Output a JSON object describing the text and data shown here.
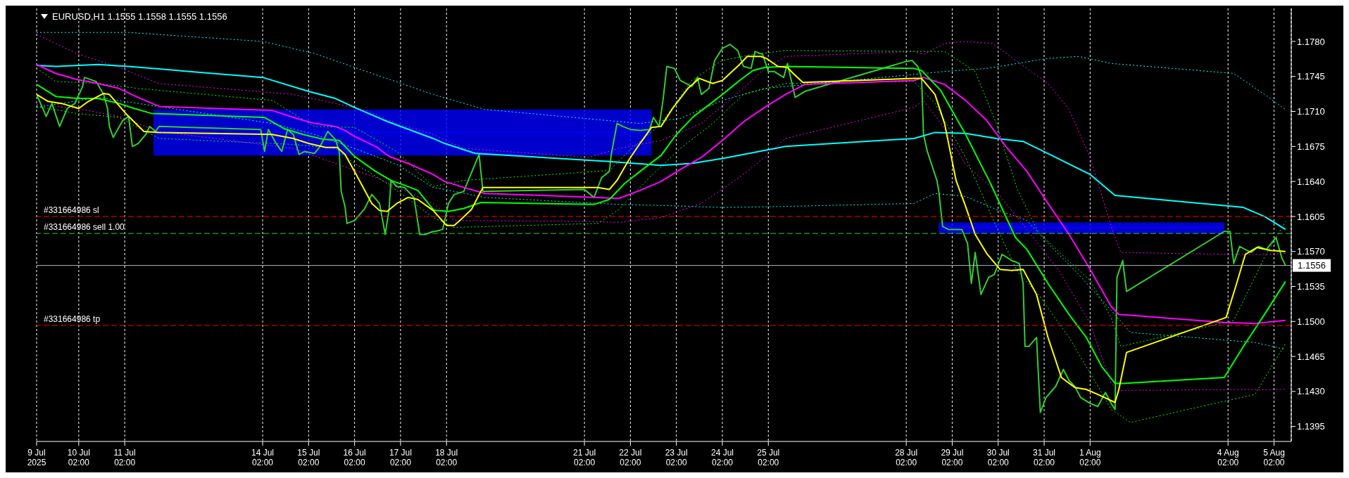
{
  "chart_data": {
    "type": "line",
    "title": "EURUSD,H1 1.1555 1.1558 1.1555 1.1556",
    "xlim": [
      "2025-07-09T04:00",
      "2025-08-05T11:00"
    ],
    "ylim": [
      1.138,
      1.1813
    ],
    "xticks": [
      {
        "value": "2025-07-09T04:00",
        "label": "9 Jul 2025"
      },
      {
        "value": "2025-07-10T02:00",
        "label": "10 Jul 02:00"
      },
      {
        "value": "2025-07-11T02:00",
        "label": "11 Jul 02:00"
      },
      {
        "value": "2025-07-14T02:00",
        "label": "14 Jul 02:00"
      },
      {
        "value": "2025-07-15T02:00",
        "label": "15 Jul 02:00"
      },
      {
        "value": "2025-07-16T02:00",
        "label": "16 Jul 02:00"
      },
      {
        "value": "2025-07-17T02:00",
        "label": "17 Jul 02:00"
      },
      {
        "value": "2025-07-18T02:00",
        "label": "18 Jul 02:00"
      },
      {
        "value": "2025-07-21T02:00",
        "label": "21 Jul 02:00"
      },
      {
        "value": "2025-07-22T02:00",
        "label": "22 Jul 02:00"
      },
      {
        "value": "2025-07-23T02:00",
        "label": "23 Jul 02:00"
      },
      {
        "value": "2025-07-24T02:00",
        "label": "24 Jul 02:00"
      },
      {
        "value": "2025-07-25T02:00",
        "label": "25 Jul 02:00"
      },
      {
        "value": "2025-07-28T02:00",
        "label": "28 Jul 02:00"
      },
      {
        "value": "2025-07-29T02:00",
        "label": "29 Jul 02:00"
      },
      {
        "value": "2025-07-30T02:00",
        "label": "30 Jul 02:00"
      },
      {
        "value": "2025-07-31T02:00",
        "label": "31 Jul 02:00"
      },
      {
        "value": "2025-08-01T02:00",
        "label": "1 Aug 02:00"
      },
      {
        "value": "2025-08-04T02:00",
        "label": "4 Aug 02:00"
      },
      {
        "value": "2025-08-05T02:00",
        "label": "5 Aug 02:00"
      }
    ],
    "yticks": [
      1.1395,
      {
        "value": 1.143,
        "label": "1.1430"
      },
      1.1465,
      {
        "value": 1.15,
        "label": "1.1500"
      },
      1.1535,
      {
        "value": 1.157,
        "label": "1.1570"
      },
      1.1605,
      {
        "value": 1.164,
        "label": "1.1640"
      },
      1.1675,
      {
        "value": 1.171,
        "label": "1.1710"
      },
      1.1745,
      {
        "value": 1.178,
        "label": "1.1780"
      }
    ],
    "grid": "x",
    "series": [
      {
        "color": "#0000ff",
        "x": [
          "2025-07-11T17:00",
          "2025-07-22T13:00"
        ],
        "values": [
          1.1689,
          1.1689
        ],
        "lower": [
          1.1666,
          1.1666
        ],
        "upper": [
          1.1712,
          1.1712
        ]
      },
      {
        "color": "#0000ff",
        "x": [
          "2025-07-28T19:00",
          "2025-08-04T00:00"
        ],
        "values": [
          1.1594,
          1.1594
        ],
        "lower": [
          1.1588,
          1.1588
        ],
        "upper": [
          1.1599,
          1.1599
        ]
      },
      {
        "color": "#00ffff",
        "line_style": "dotted",
        "x": [
          "2025-07-09T04:00",
          "2025-07-11T04:00",
          "2025-07-14T02:00",
          "2025-07-15T05:00",
          "2025-07-16T02:00",
          "2025-07-17T19:00",
          "2025-07-18T22:00",
          "2025-07-22T07:00",
          "2025-07-23T04:00",
          "2025-07-24T02:00",
          "2025-07-25T00:00",
          "2025-07-28T06:00",
          "2025-07-28T22:00",
          "2025-07-29T20:00",
          "2025-07-31T04:00",
          "2025-07-31T20:00",
          "2025-08-01T13:00",
          "2025-08-04T05:00",
          "2025-08-04T21:00",
          "2025-08-05T08:00"
        ],
        "values": [
          1.1789,
          1.1789,
          1.178,
          1.1768,
          1.1754,
          1.1727,
          1.1712,
          1.1698,
          1.1703,
          1.1721,
          1.1733,
          1.1747,
          1.175,
          1.1753,
          1.1763,
          1.1765,
          1.1758,
          1.1748,
          1.1727,
          1.1712
        ]
      },
      {
        "color": "#00ffff",
        "line_style": "dotted",
        "x": [
          "2025-07-09T04:00",
          "2025-07-10T12:00",
          "2025-07-11T09:00",
          "2025-07-14T07:00",
          "2025-07-15T05:00",
          "2025-07-16T02:00",
          "2025-07-17T00:00",
          "2025-07-17T19:00",
          "2025-07-18T01:00",
          "2025-07-18T22:00",
          "2025-07-21T20:00",
          "2025-07-22T18:00",
          "2025-07-24T02:00",
          "2025-07-25T11:00",
          "2025-07-28T06:00",
          "2025-07-28T17:00",
          "2025-07-29T09:00",
          "2025-07-30T01:00",
          "2025-07-30T17:00",
          "2025-07-31T04:00",
          "2025-07-31T20:00",
          "2025-08-01T13:00",
          "2025-08-01T23:00",
          "2025-08-04T16:00",
          "2025-08-05T08:00"
        ],
        "values": [
          1.1714,
          1.1724,
          1.1718,
          1.1698,
          1.1687,
          1.1673,
          1.1657,
          1.1634,
          1.1632,
          1.1624,
          1.1617,
          1.1616,
          1.1614,
          1.1615,
          1.1618,
          1.1628,
          1.1625,
          1.1612,
          1.1601,
          1.1578,
          1.1547,
          1.1511,
          1.1489,
          1.1479,
          1.1472
        ]
      },
      {
        "color": "#ff00ff",
        "line_style": "dotted",
        "x": [
          "2025-07-09T04:00",
          "2025-07-10T01:00",
          "2025-07-10T23:00",
          "2025-07-11T20:00",
          "2025-07-14T18:00",
          "2025-07-15T16:00",
          "2025-07-16T08:00",
          "2025-07-17T00:00",
          "2025-07-17T19:00",
          "2025-07-18T11:00",
          "2025-07-21T04:00",
          "2025-07-21T20:00",
          "2025-07-22T18:00",
          "2025-07-23T15:00",
          "2025-07-24T13:00",
          "2025-07-25T00:00",
          "2025-07-25T11:00",
          "2025-07-28T06:00",
          "2025-07-28T11:00",
          "2025-07-28T22:00",
          "2025-07-29T09:00",
          "2025-07-29T23:00",
          "2025-07-30T17:00",
          "2025-07-31T04:00",
          "2025-07-31T15:00",
          "2025-08-01T02:00",
          "2025-08-01T13:00",
          "2025-08-01T18:00",
          "2025-08-04T05:00",
          "2025-08-04T21:00",
          "2025-08-05T08:00"
        ],
        "values": [
          1.1787,
          1.1768,
          1.1754,
          1.1738,
          1.1727,
          1.1718,
          1.1711,
          1.1698,
          1.1687,
          1.1673,
          1.1664,
          1.1673,
          1.1681,
          1.1698,
          1.1733,
          1.1753,
          1.1765,
          1.177,
          1.1767,
          1.1778,
          1.178,
          1.1778,
          1.1753,
          1.1738,
          1.1712,
          1.1664,
          1.1595,
          1.1569,
          1.1567,
          1.1567,
          1.1568
        ]
      },
      {
        "color": "#ff00ff",
        "line_style": "dotted",
        "x": [
          "2025-07-09T04:00",
          "2025-07-10T01:00",
          "2025-07-10T23:00",
          "2025-07-11T20:00",
          "2025-07-14T18:00",
          "2025-07-15T16:00",
          "2025-07-16T13:00",
          "2025-07-17T19:00",
          "2025-07-18T06:00",
          "2025-07-21T04:00",
          "2025-07-21T20:00",
          "2025-07-22T18:00",
          "2025-07-23T15:00",
          "2025-07-24T13:00",
          "2025-07-25T00:00",
          "2025-07-25T11:00",
          "2025-07-28T06:00",
          "2025-07-28T11:00",
          "2025-07-28T22:00",
          "2025-07-29T09:00",
          "2025-07-30T01:00",
          "2025-07-30T17:00",
          "2025-07-31T10:00",
          "2025-08-01T02:00",
          "2025-08-01T13:00",
          "2025-08-01T18:00",
          "2025-08-04T10:00",
          "2025-08-05T08:00"
        ],
        "values": [
          1.1717,
          1.1713,
          1.1705,
          1.169,
          1.1673,
          1.1658,
          1.1644,
          1.1618,
          1.1601,
          1.16,
          1.1599,
          1.1604,
          1.1618,
          1.1647,
          1.1664,
          1.1683,
          1.1714,
          1.1721,
          1.1693,
          1.1657,
          1.163,
          1.1592,
          1.155,
          1.1498,
          1.1438,
          1.1431,
          1.1432,
          1.1432
        ]
      },
      {
        "color": "#00ff00",
        "line_style": "dotted",
        "x": [
          "2025-07-09T04:00",
          "2025-07-09T14:00",
          "2025-07-10T12:00",
          "2025-07-11T09:00",
          "2025-07-14T07:00",
          "2025-07-15T05:00",
          "2025-07-16T02:00",
          "2025-07-17T00:00",
          "2025-07-17T19:00",
          "2025-07-18T11:00",
          "2025-07-21T15:00",
          "2025-07-22T01:00",
          "2025-07-22T18:00",
          "2025-07-23T10:00",
          "2025-07-24T02:00",
          "2025-07-24T18:00",
          "2025-07-25T11:00",
          "2025-07-28T06:00",
          "2025-07-28T22:00",
          "2025-07-29T14:00",
          "2025-07-30T01:00",
          "2025-07-30T12:00",
          "2025-07-30T23:00",
          "2025-07-31T10:00",
          "2025-08-01T02:00",
          "2025-08-01T13:00",
          "2025-08-01T18:00",
          "2025-08-04T05:00",
          "2025-08-04T21:00",
          "2025-08-05T08:00"
        ],
        "values": [
          1.1753,
          1.174,
          1.1738,
          1.1733,
          1.1721,
          1.1695,
          1.1694,
          1.167,
          1.1635,
          1.1641,
          1.1651,
          1.167,
          1.1698,
          1.1741,
          1.1761,
          1.1767,
          1.1771,
          1.177,
          1.177,
          1.175,
          1.1698,
          1.1632,
          1.1589,
          1.1569,
          1.1541,
          1.1504,
          1.1475,
          1.1501,
          1.1564,
          1.16
        ]
      },
      {
        "color": "#00ff00",
        "line_style": "dotted",
        "x": [
          "2025-07-09T04:00",
          "2025-07-10T01:00",
          "2025-07-10T23:00",
          "2025-07-11T20:00",
          "2025-07-14T18:00",
          "2025-07-15T16:00",
          "2025-07-16T02:00",
          "2025-07-16T19:00",
          "2025-07-17T19:00",
          "2025-07-18T06:00",
          "2025-07-21T09:00",
          "2025-07-21T20:00",
          "2025-07-22T12:00",
          "2025-07-23T04:00",
          "2025-07-23T21:00",
          "2025-07-24T13:00",
          "2025-07-25T11:00",
          "2025-07-28T06:00",
          "2025-07-28T17:00",
          "2025-07-29T09:00",
          "2025-07-30T01:00",
          "2025-07-30T12:00",
          "2025-07-30T23:00",
          "2025-07-31T15:00",
          "2025-08-01T07:00",
          "2025-08-01T13:00",
          "2025-08-01T23:00",
          "2025-08-04T16:00",
          "2025-08-05T08:00"
        ],
        "values": [
          1.1715,
          1.1708,
          1.1704,
          1.1683,
          1.1677,
          1.1673,
          1.1658,
          1.1638,
          1.1604,
          1.1594,
          1.1598,
          1.1612,
          1.1644,
          1.1673,
          1.1698,
          1.1727,
          1.1738,
          1.174,
          1.1718,
          1.1664,
          1.1595,
          1.155,
          1.1527,
          1.1484,
          1.1432,
          1.1412,
          1.1399,
          1.1427,
          1.1478
        ]
      },
      {
        "color": "#32cd32",
        "x": [
          "2025-07-09T04:00",
          "2025-07-09T07:00",
          "2025-07-09T09:00",
          "2025-07-09T12:00",
          "2025-07-09T16:00",
          "2025-07-09T20:00",
          "2025-07-10T00:00",
          "2025-07-10T04:00",
          "2025-07-10T05:00",
          "2025-07-10T11:00",
          "2025-07-10T15:00",
          "2025-07-10T17:00",
          "2025-07-10T18:00",
          "2025-07-10T20:00",
          "2025-07-11T01:00",
          "2025-07-11T04:00",
          "2025-07-11T06:00",
          "2025-07-11T09:00",
          "2025-07-11T13:00",
          "2025-07-11T15:00",
          "2025-07-11T18:00",
          "2025-07-11T20:00",
          "2025-07-14T01:00",
          "2025-07-14T03:00",
          "2025-07-14T05:00",
          "2025-07-14T09:00",
          "2025-07-14T12:00",
          "2025-07-14T15:00",
          "2025-07-14T18:00",
          "2025-07-14T21:00",
          "2025-07-15T00:00",
          "2025-07-15T05:00",
          "2025-07-15T08:00",
          "2025-07-15T12:00",
          "2025-07-15T16:00",
          "2025-07-15T18:00",
          "2025-07-15T19:00",
          "2025-07-15T21:00",
          "2025-07-15T22:00",
          "2025-07-16T02:00",
          "2025-07-16T07:00",
          "2025-07-16T11:00",
          "2025-07-16T15:00",
          "2025-07-16T18:00",
          "2025-07-16T20:00",
          "2025-07-16T21:00",
          "2025-07-17T00:00",
          "2025-07-17T04:00",
          "2025-07-17T09:00",
          "2025-07-17T12:00",
          "2025-07-17T15:00",
          "2025-07-17T19:00",
          "2025-07-17T20:00",
          "2025-07-18T00:00",
          "2025-07-18T03:00",
          "2025-07-18T06:00",
          "2025-07-18T11:00",
          "2025-07-18T17:00",
          "2025-07-18T19:00",
          "2025-07-18T21:00",
          "2025-07-21T02:00",
          "2025-07-21T07:00",
          "2025-07-21T11:00",
          "2025-07-21T15:00",
          "2025-07-21T16:00",
          "2025-07-21T19:00",
          "2025-07-21T22:00",
          "2025-07-22T02:00",
          "2025-07-22T07:00",
          "2025-07-22T12:00",
          "2025-07-22T14:00",
          "2025-07-22T17:00",
          "2025-07-22T19:00",
          "2025-07-22T21:00",
          "2025-07-23T01:00",
          "2025-07-23T04:00",
          "2025-07-23T10:00",
          "2025-07-23T13:00",
          "2025-07-23T15:00",
          "2025-07-23T19:00",
          "2025-07-23T22:00",
          "2025-07-24T02:00",
          "2025-07-24T06:00",
          "2025-07-24T10:00",
          "2025-07-24T13:00",
          "2025-07-24T17:00",
          "2025-07-24T19:00",
          "2025-07-24T23:00",
          "2025-07-25T02:00",
          "2025-07-25T05:00",
          "2025-07-25T10:00",
          "2025-07-25T12:00",
          "2025-07-25T16:00",
          "2025-07-25T21:00",
          "2025-07-28T02:00",
          "2025-07-28T05:00",
          "2025-07-28T08:00",
          "2025-07-28T10:00",
          "2025-07-28T11:00",
          "2025-07-28T13:00",
          "2025-07-28T18:00",
          "2025-07-28T19:00",
          "2025-07-28T21:00",
          "2025-07-29T00:00",
          "2025-07-29T07:00",
          "2025-07-29T10:00",
          "2025-07-29T12:00",
          "2025-07-29T14:00",
          "2025-07-29T17:00",
          "2025-07-29T21:00",
          "2025-07-30T00:00",
          "2025-07-30T04:00",
          "2025-07-30T09:00",
          "2025-07-30T13:00",
          "2025-07-30T15:00",
          "2025-07-30T16:00",
          "2025-07-30T18:00",
          "2025-07-30T22:00",
          "2025-07-31T00:00",
          "2025-07-31T03:00",
          "2025-07-31T08:00",
          "2025-07-31T12:00",
          "2025-07-31T15:00",
          "2025-07-31T18:00",
          "2025-07-31T21:00",
          "2025-08-01T02:00",
          "2025-08-01T06:00",
          "2025-08-01T10:00",
          "2025-08-01T13:00",
          "2025-08-01T15:00",
          "2025-08-01T16:00",
          "2025-08-01T19:00",
          "2025-08-01T21:00",
          "2025-08-04T00:00",
          "2025-08-04T03:00",
          "2025-08-04T05:00",
          "2025-08-04T08:00",
          "2025-08-04T14:00",
          "2025-08-04T18:00",
          "2025-08-04T22:00",
          "2025-08-05T03:00",
          "2025-08-05T06:00",
          "2025-08-05T08:00"
        ],
        "values": [
          1.1727,
          1.1714,
          1.1705,
          1.1718,
          1.1695,
          1.1713,
          1.1718,
          1.1735,
          1.1744,
          1.174,
          1.1727,
          1.1713,
          1.1695,
          1.1684,
          1.1701,
          1.1705,
          1.1675,
          1.1678,
          1.1687,
          1.1695,
          1.169,
          1.1695,
          1.1692,
          1.167,
          1.1692,
          1.1678,
          1.167,
          1.1692,
          1.1687,
          1.1667,
          1.167,
          1.1668,
          1.1675,
          1.169,
          1.1682,
          1.167,
          1.163,
          1.1615,
          1.1598,
          1.1601,
          1.1612,
          1.1627,
          1.1618,
          1.1587,
          1.1612,
          1.1641,
          1.1635,
          1.1634,
          1.1624,
          1.1587,
          1.1587,
          1.159,
          1.159,
          1.1592,
          1.1618,
          1.1627,
          1.163,
          1.1658,
          1.1667,
          1.163,
          1.1632,
          1.1624,
          1.1644,
          1.165,
          1.1667,
          1.1698,
          1.1695,
          1.1692,
          1.1691,
          1.1692,
          1.1704,
          1.1695,
          1.1721,
          1.1755,
          1.1753,
          1.1741,
          1.1735,
          1.1744,
          1.1727,
          1.1733,
          1.1761,
          1.1773,
          1.1777,
          1.1771,
          1.1755,
          1.1753,
          1.177,
          1.1767,
          1.175,
          1.175,
          1.1744,
          1.1758,
          1.1724,
          1.173,
          1.176,
          1.1761,
          1.1755,
          1.1744,
          1.1687,
          1.167,
          1.1641,
          1.163,
          1.1595,
          1.1592,
          1.1592,
          1.1578,
          1.1538,
          1.1569,
          1.1527,
          1.1544,
          1.1547,
          1.1567,
          1.1561,
          1.1558,
          1.1538,
          1.1475,
          1.1475,
          1.1484,
          1.1409,
          1.1424,
          1.1435,
          1.1452,
          1.1441,
          1.1435,
          1.1424,
          1.1418,
          1.1415,
          1.1429,
          1.1418,
          1.1412,
          1.1544,
          1.1561,
          1.153,
          1.159,
          1.159,
          1.1558,
          1.1575,
          1.1569,
          1.1575,
          1.1572,
          1.1584,
          1.1564,
          1.1556
        ]
      },
      {
        "color": "#00ffff",
        "line_style": "solid",
        "x": [
          "2025-07-09T04:00",
          "2025-07-09T14:00",
          "2025-07-10T12:00",
          "2025-07-11T04:00",
          "2025-07-14T02:00",
          "2025-07-15T02:00",
          "2025-07-15T16:00",
          "2025-07-16T02:00",
          "2025-07-16T19:00",
          "2025-07-17T19:00",
          "2025-07-18T01:00",
          "2025-07-18T17:00",
          "2025-07-21T15:00",
          "2025-07-22T18:00",
          "2025-07-23T10:00",
          "2025-07-24T02:00",
          "2025-07-25T00:00",
          "2025-07-25T11:00",
          "2025-07-28T06:00",
          "2025-07-28T17:00",
          "2025-07-29T09:00",
          "2025-07-30T01:00",
          "2025-07-30T15:00",
          "2025-07-31T04:00",
          "2025-08-01T02:00",
          "2025-08-01T15:00",
          "2025-08-04T10:00",
          "2025-08-04T21:00",
          "2025-08-05T08:00"
        ],
        "values": [
          1.1756,
          1.1755,
          1.1757,
          1.1755,
          1.1744,
          1.173,
          1.1723,
          1.1714,
          1.17,
          1.1683,
          1.1678,
          1.1668,
          1.166,
          1.1656,
          1.1658,
          1.1663,
          1.1671,
          1.1675,
          1.1683,
          1.1689,
          1.1688,
          1.1683,
          1.168,
          1.1668,
          1.1647,
          1.1626,
          1.1614,
          1.1605,
          1.1592
        ]
      },
      {
        "color": "#ff00ff",
        "line_style": "solid",
        "x": [
          "2025-07-09T04:00",
          "2025-07-09T14:00",
          "2025-07-10T01:00",
          "2025-07-10T12:00",
          "2025-07-10T23:00",
          "2025-07-11T09:00",
          "2025-07-11T20:00",
          "2025-07-14T07:00",
          "2025-07-14T18:00",
          "2025-07-15T05:00",
          "2025-07-15T16:00",
          "2025-07-15T21:00",
          "2025-07-16T02:00",
          "2025-07-16T13:00",
          "2025-07-16T20:00",
          "2025-07-17T06:00",
          "2025-07-17T19:00",
          "2025-07-18T01:00",
          "2025-07-18T11:00",
          "2025-07-18T22:00",
          "2025-07-21T09:00",
          "2025-07-21T20:00",
          "2025-07-22T07:00",
          "2025-07-22T18:00",
          "2025-07-23T04:00",
          "2025-07-23T15:00",
          "2025-07-24T02:00",
          "2025-07-24T14:00",
          "2025-07-25T00:00",
          "2025-07-25T11:00",
          "2025-07-25T21:00",
          "2025-07-28T06:00",
          "2025-07-28T11:00",
          "2025-07-28T22:00",
          "2025-07-29T09:00",
          "2025-07-29T20:00",
          "2025-07-30T06:00",
          "2025-07-30T17:00",
          "2025-07-31T04:00",
          "2025-07-31T15:00",
          "2025-08-01T02:00",
          "2025-08-01T13:00",
          "2025-08-01T17:00",
          "2025-08-04T00:00",
          "2025-08-04T16:00",
          "2025-08-05T08:00"
        ],
        "values": [
          1.1757,
          1.1748,
          1.1742,
          1.1738,
          1.1733,
          1.1724,
          1.1715,
          1.1711,
          1.1704,
          1.1698,
          1.1695,
          1.1691,
          1.1685,
          1.1675,
          1.1665,
          1.1658,
          1.1647,
          1.164,
          1.1634,
          1.1628,
          1.1624,
          1.1623,
          1.1631,
          1.164,
          1.1652,
          1.1664,
          1.1681,
          1.1701,
          1.1714,
          1.1727,
          1.1737,
          1.1741,
          1.1744,
          1.1737,
          1.1721,
          1.1701,
          1.1675,
          1.165,
          1.1618,
          1.1587,
          1.1552,
          1.1515,
          1.1507,
          1.1499,
          1.1498,
          1.1501
        ]
      },
      {
        "color": "#00ff00",
        "line_style": "solid",
        "x": [
          "2025-07-09T04:00",
          "2025-07-09T14:00",
          "2025-07-10T01:00",
          "2025-07-10T12:00",
          "2025-07-10T23:00",
          "2025-07-11T07:00",
          "2025-07-11T16:00",
          "2025-07-14T03:00",
          "2025-07-14T13:00",
          "2025-07-14T23:00",
          "2025-07-15T10:00",
          "2025-07-15T18:00",
          "2025-07-16T02:00",
          "2025-07-16T13:00",
          "2025-07-16T21:00",
          "2025-07-17T03:00",
          "2025-07-17T11:00",
          "2025-07-17T19:00",
          "2025-07-17T20:00",
          "2025-07-18T03:00",
          "2025-07-18T11:00",
          "2025-07-18T20:00",
          "2025-07-21T07:00",
          "2025-07-21T15:00",
          "2025-07-21T23:00",
          "2025-07-22T07:00",
          "2025-07-22T18:00",
          "2025-07-23T02:00",
          "2025-07-23T11:00",
          "2025-07-23T20:00",
          "2025-07-24T02:00",
          "2025-07-24T11:00",
          "2025-07-24T18:00",
          "2025-07-25T00:00",
          "2025-07-25T11:00",
          "2025-07-28T06:00",
          "2025-07-28T10:00",
          "2025-07-28T20:00",
          "2025-07-29T09:00",
          "2025-07-29T22:00",
          "2025-07-30T11:00",
          "2025-07-30T17:00",
          "2025-07-31T04:00",
          "2025-07-31T15:00",
          "2025-08-01T00:00",
          "2025-08-01T08:00",
          "2025-08-01T15:00",
          "2025-08-01T19:00",
          "2025-08-04T00:00",
          "2025-08-04T10:00",
          "2025-08-04T21:00",
          "2025-08-05T08:00"
        ],
        "values": [
          1.1737,
          1.1725,
          1.1723,
          1.1723,
          1.1718,
          1.1713,
          1.1708,
          1.1704,
          1.1693,
          1.1687,
          1.1682,
          1.1681,
          1.1665,
          1.165,
          1.1641,
          1.1637,
          1.1631,
          1.1612,
          1.1611,
          1.161,
          1.1613,
          1.1619,
          1.1617,
          1.1622,
          1.1638,
          1.165,
          1.1666,
          1.1687,
          1.1705,
          1.1718,
          1.1727,
          1.1741,
          1.1751,
          1.1754,
          1.1755,
          1.1753,
          1.1751,
          1.1731,
          1.1687,
          1.1638,
          1.1584,
          1.1572,
          1.1538,
          1.1507,
          1.1484,
          1.1455,
          1.1438,
          1.1438,
          1.1444,
          1.1475,
          1.1507,
          1.154
        ]
      },
      {
        "color": "#ffff00",
        "line_style": "solid",
        "x": [
          "2025-07-09T04:00",
          "2025-07-09T10:00",
          "2025-07-09T17:00",
          "2025-07-10T02:00",
          "2025-07-10T07:00",
          "2025-07-10T15:00",
          "2025-07-10T18:00",
          "2025-07-11T03:00",
          "2025-07-11T12:00",
          "2025-07-11T20:00",
          "2025-07-14T07:00",
          "2025-07-14T18:00",
          "2025-07-15T02:00",
          "2025-07-15T11:00",
          "2025-07-15T17:00",
          "2025-07-15T21:00",
          "2025-07-16T02:00",
          "2025-07-16T11:00",
          "2025-07-16T15:00",
          "2025-07-16T19:00",
          "2025-07-17T00:00",
          "2025-07-17T06:00",
          "2025-07-17T11:00",
          "2025-07-17T19:00",
          "2025-07-18T02:00",
          "2025-07-18T06:00",
          "2025-07-18T09:00",
          "2025-07-18T15:00",
          "2025-07-18T21:00",
          "2025-07-21T09:00",
          "2025-07-21T15:00",
          "2025-07-21T19:00",
          "2025-07-22T01:00",
          "2025-07-22T07:00",
          "2025-07-22T13:00",
          "2025-07-22T18:00",
          "2025-07-23T00:00",
          "2025-07-23T08:00",
          "2025-07-23T14:00",
          "2025-07-23T21:00",
          "2025-07-24T02:00",
          "2025-07-24T11:00",
          "2025-07-24T15:00",
          "2025-07-24T22:00",
          "2025-07-25T01:00",
          "2025-07-25T07:00",
          "2025-07-25T12:00",
          "2025-07-25T15:00",
          "2025-07-25T20:00",
          "2025-07-28T06:00",
          "2025-07-28T10:00",
          "2025-07-28T17:00",
          "2025-07-28T22:00",
          "2025-07-29T04:00",
          "2025-07-29T09:00",
          "2025-07-29T14:00",
          "2025-07-29T20:00",
          "2025-07-30T03:00",
          "2025-07-30T09:00",
          "2025-07-30T15:00",
          "2025-07-30T22:00",
          "2025-07-31T04:00",
          "2025-07-31T11:00",
          "2025-07-31T18:00",
          "2025-08-01T00:00",
          "2025-08-01T06:00",
          "2025-08-01T15:00",
          "2025-08-01T17:00",
          "2025-08-01T21:00",
          "2025-08-04T01:00",
          "2025-08-04T06:00",
          "2025-08-04T11:00",
          "2025-08-04T17:00",
          "2025-08-05T00:00",
          "2025-08-05T08:00"
        ],
        "values": [
          1.1727,
          1.172,
          1.1718,
          1.1713,
          1.172,
          1.1728,
          1.1727,
          1.1707,
          1.169,
          1.1689,
          1.1687,
          1.1683,
          1.1678,
          1.1674,
          1.1674,
          1.1667,
          1.165,
          1.1618,
          1.1611,
          1.161,
          1.1618,
          1.1624,
          1.1622,
          1.1611,
          1.1596,
          1.1596,
          1.1601,
          1.1612,
          1.1634,
          1.1634,
          1.1632,
          1.1641,
          1.1661,
          1.1678,
          1.1694,
          1.1695,
          1.1713,
          1.1733,
          1.1743,
          1.1738,
          1.1741,
          1.1757,
          1.1765,
          1.1765,
          1.1763,
          1.1755,
          1.1754,
          1.1748,
          1.1739,
          1.1743,
          1.1743,
          1.1727,
          1.1698,
          1.1641,
          1.1615,
          1.1587,
          1.1568,
          1.1552,
          1.1551,
          1.1552,
          1.1527,
          1.1484,
          1.1444,
          1.1434,
          1.1432,
          1.1427,
          1.1419,
          1.1432,
          1.1469,
          1.1504,
          1.1535,
          1.1567,
          1.1574,
          1.1571,
          1.157
        ]
      }
    ],
    "ref_lines": [
      {
        "axis": "y",
        "value": 1.1605,
        "label": "#331664986 sl",
        "color": "#ff0000",
        "line_style": "dashed"
      },
      {
        "axis": "y",
        "value": 1.1588,
        "label": "#331664986 sell 1.00",
        "color": "#32cd32",
        "line_style": "dashed"
      },
      {
        "axis": "y",
        "value": 1.1496,
        "label": "#331664986 tp",
        "color": "#ff0000",
        "line_style": "dashed"
      },
      {
        "axis": "y",
        "value": 1.1556,
        "label": "1.1556",
        "color": "#b0b8c0",
        "line_style": "solid"
      }
    ]
  }
}
